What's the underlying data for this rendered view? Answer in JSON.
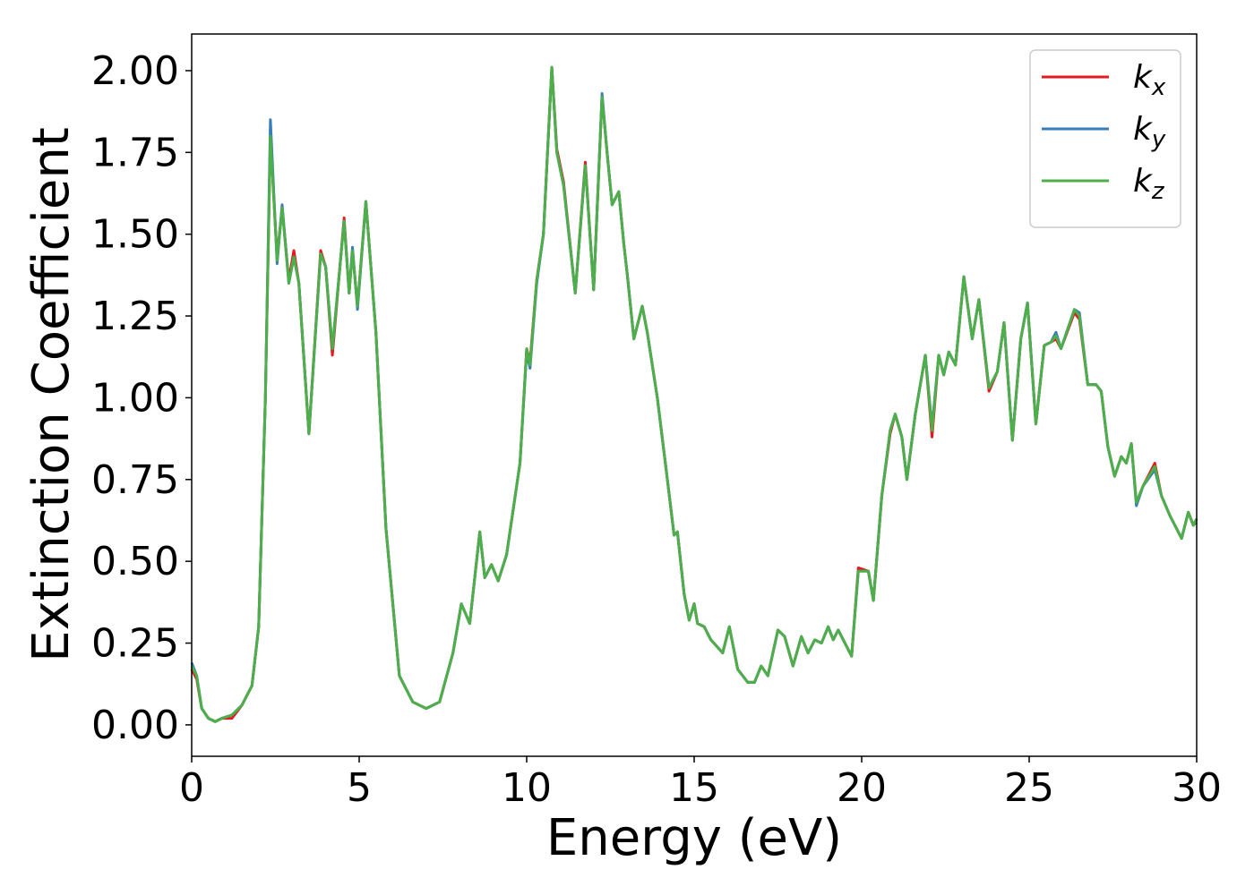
{
  "chart_data": {
    "type": "line",
    "x_label": "Energy (eV)",
    "y_label": "Extinction Coefficient",
    "x": [
      0,
      0.15,
      0.3,
      0.5,
      0.7,
      0.9,
      1.2,
      1.5,
      1.8,
      2.0,
      2.2,
      2.35,
      2.55,
      2.7,
      2.9,
      3.05,
      3.2,
      3.5,
      3.85,
      4.0,
      4.2,
      4.55,
      4.7,
      4.8,
      4.95,
      5.2,
      5.5,
      5.8,
      6.2,
      6.6,
      7.0,
      7.4,
      7.8,
      8.05,
      8.3,
      8.6,
      8.75,
      8.95,
      9.15,
      9.4,
      9.8,
      10.0,
      10.1,
      10.3,
      10.5,
      10.75,
      10.9,
      11.1,
      11.45,
      11.75,
      12.0,
      12.25,
      12.4,
      12.55,
      12.75,
      12.9,
      13.0,
      13.2,
      13.45,
      13.6,
      13.9,
      14.2,
      14.4,
      14.5,
      14.7,
      14.85,
      15.0,
      15.1,
      15.3,
      15.5,
      15.85,
      16.05,
      16.3,
      16.6,
      16.8,
      17.0,
      17.2,
      17.5,
      17.7,
      17.95,
      18.2,
      18.4,
      18.6,
      18.8,
      19.0,
      19.15,
      19.3,
      19.55,
      19.7,
      19.9,
      20.2,
      20.35,
      20.6,
      20.85,
      21.0,
      21.2,
      21.35,
      21.6,
      21.9,
      22.1,
      22.3,
      22.45,
      22.6,
      22.8,
      23.05,
      23.3,
      23.5,
      23.8,
      24.05,
      24.25,
      24.5,
      24.75,
      24.95,
      25.2,
      25.45,
      25.65,
      25.8,
      25.95,
      26.35,
      26.5,
      26.75,
      27.0,
      27.15,
      27.35,
      27.55,
      27.75,
      27.9,
      28.05,
      28.2,
      28.4,
      28.75,
      28.95,
      29.2,
      29.55,
      29.75,
      29.9,
      30.0
    ],
    "series": [
      {
        "name": "kx",
        "color": "#e41a1c",
        "values": [
          0.17,
          0.14,
          0.05,
          0.02,
          0.01,
          0.02,
          0.02,
          0.06,
          0.12,
          0.3,
          1.0,
          1.8,
          1.43,
          1.58,
          1.36,
          1.45,
          1.35,
          0.89,
          1.45,
          1.4,
          1.13,
          1.55,
          1.32,
          1.45,
          1.28,
          1.6,
          1.2,
          0.6,
          0.15,
          0.07,
          0.05,
          0.07,
          0.22,
          0.37,
          0.31,
          0.59,
          0.45,
          0.49,
          0.44,
          0.52,
          0.8,
          1.15,
          1.11,
          1.36,
          1.5,
          2.01,
          1.76,
          1.66,
          1.32,
          1.72,
          1.33,
          1.92,
          1.75,
          1.59,
          1.63,
          1.47,
          1.38,
          1.18,
          1.28,
          1.2,
          1.0,
          0.75,
          0.58,
          0.59,
          0.4,
          0.32,
          0.37,
          0.31,
          0.3,
          0.26,
          0.22,
          0.3,
          0.17,
          0.13,
          0.13,
          0.18,
          0.15,
          0.29,
          0.27,
          0.18,
          0.27,
          0.22,
          0.26,
          0.25,
          0.3,
          0.26,
          0.29,
          0.24,
          0.21,
          0.48,
          0.47,
          0.38,
          0.7,
          0.89,
          0.95,
          0.88,
          0.75,
          0.95,
          1.13,
          0.88,
          1.13,
          1.07,
          1.14,
          1.1,
          1.37,
          1.18,
          1.3,
          1.02,
          1.08,
          1.23,
          0.87,
          1.18,
          1.29,
          0.92,
          1.16,
          1.17,
          1.18,
          1.15,
          1.26,
          1.24,
          1.04,
          1.04,
          1.02,
          0.85,
          0.76,
          0.82,
          0.8,
          0.86,
          0.68,
          0.73,
          0.8,
          0.7,
          0.64,
          0.57,
          0.65,
          0.61,
          0.63
        ]
      },
      {
        "name": "ky",
        "color": "#377eb8",
        "values": [
          0.19,
          0.15,
          0.05,
          0.02,
          0.01,
          0.02,
          0.03,
          0.06,
          0.12,
          0.3,
          1.0,
          1.85,
          1.41,
          1.59,
          1.35,
          1.43,
          1.35,
          0.89,
          1.44,
          1.4,
          1.15,
          1.54,
          1.32,
          1.46,
          1.27,
          1.6,
          1.2,
          0.6,
          0.15,
          0.07,
          0.05,
          0.07,
          0.22,
          0.37,
          0.31,
          0.59,
          0.45,
          0.49,
          0.44,
          0.52,
          0.8,
          1.14,
          1.09,
          1.35,
          1.5,
          2.01,
          1.75,
          1.65,
          1.32,
          1.71,
          1.33,
          1.93,
          1.75,
          1.59,
          1.63,
          1.47,
          1.38,
          1.18,
          1.28,
          1.2,
          1.0,
          0.75,
          0.58,
          0.59,
          0.4,
          0.32,
          0.37,
          0.31,
          0.3,
          0.26,
          0.22,
          0.3,
          0.17,
          0.13,
          0.13,
          0.18,
          0.15,
          0.29,
          0.27,
          0.18,
          0.27,
          0.22,
          0.26,
          0.25,
          0.3,
          0.26,
          0.29,
          0.24,
          0.21,
          0.47,
          0.47,
          0.38,
          0.7,
          0.9,
          0.95,
          0.88,
          0.75,
          0.95,
          1.13,
          0.91,
          1.13,
          1.07,
          1.14,
          1.1,
          1.37,
          1.18,
          1.3,
          1.03,
          1.08,
          1.23,
          0.87,
          1.18,
          1.29,
          0.92,
          1.16,
          1.17,
          1.2,
          1.15,
          1.27,
          1.26,
          1.04,
          1.04,
          1.02,
          0.85,
          0.76,
          0.82,
          0.8,
          0.86,
          0.67,
          0.73,
          0.78,
          0.7,
          0.64,
          0.57,
          0.65,
          0.61,
          0.62
        ]
      },
      {
        "name": "kz",
        "color": "#4daf4a",
        "values": [
          0.18,
          0.15,
          0.05,
          0.02,
          0.01,
          0.02,
          0.03,
          0.06,
          0.12,
          0.3,
          1.0,
          1.8,
          1.42,
          1.58,
          1.35,
          1.43,
          1.35,
          0.89,
          1.44,
          1.4,
          1.15,
          1.54,
          1.32,
          1.45,
          1.28,
          1.6,
          1.2,
          0.6,
          0.15,
          0.07,
          0.05,
          0.07,
          0.22,
          0.37,
          0.31,
          0.59,
          0.45,
          0.49,
          0.44,
          0.52,
          0.8,
          1.15,
          1.1,
          1.36,
          1.5,
          2.01,
          1.75,
          1.65,
          1.32,
          1.71,
          1.33,
          1.92,
          1.75,
          1.59,
          1.63,
          1.47,
          1.38,
          1.18,
          1.28,
          1.2,
          1.0,
          0.75,
          0.58,
          0.59,
          0.4,
          0.32,
          0.37,
          0.31,
          0.3,
          0.26,
          0.22,
          0.3,
          0.17,
          0.13,
          0.13,
          0.18,
          0.15,
          0.29,
          0.27,
          0.18,
          0.27,
          0.22,
          0.26,
          0.25,
          0.3,
          0.26,
          0.29,
          0.24,
          0.21,
          0.47,
          0.47,
          0.38,
          0.7,
          0.9,
          0.95,
          0.88,
          0.75,
          0.95,
          1.13,
          0.9,
          1.13,
          1.07,
          1.14,
          1.1,
          1.37,
          1.18,
          1.3,
          1.03,
          1.08,
          1.23,
          0.87,
          1.18,
          1.29,
          0.92,
          1.16,
          1.17,
          1.19,
          1.15,
          1.27,
          1.25,
          1.04,
          1.04,
          1.02,
          0.85,
          0.76,
          0.82,
          0.8,
          0.86,
          0.68,
          0.73,
          0.79,
          0.7,
          0.64,
          0.57,
          0.65,
          0.61,
          0.63
        ]
      }
    ],
    "xlim": [
      0,
      30
    ],
    "xticks": [
      0,
      5,
      10,
      15,
      20,
      25,
      30
    ],
    "ylim": [
      -0.096,
      2.112
    ],
    "yticks": [
      {
        "value": 0,
        "label": "0.00"
      },
      {
        "value": 0.25,
        "label": "0.25"
      },
      {
        "value": 0.5,
        "label": "0.50"
      },
      {
        "value": 0.75,
        "label": "0.75"
      },
      {
        "value": 1,
        "label": "1.00"
      },
      {
        "value": 1.25,
        "label": "1.25"
      },
      {
        "value": 1.5,
        "label": "1.50"
      },
      {
        "value": 1.75,
        "label": "1.75"
      },
      {
        "value": 2,
        "label": "2.00"
      }
    ],
    "legend": "upper right",
    "grid": false
  }
}
